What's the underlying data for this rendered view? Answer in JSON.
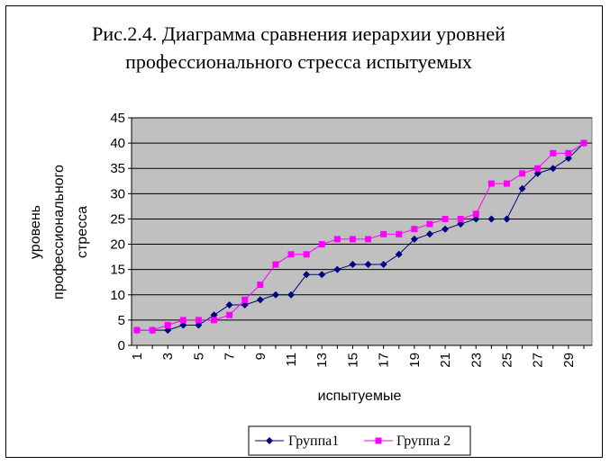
{
  "chart_data": {
    "type": "line",
    "title_lines": [
      "Рис.2.4. Диаграмма сравнения  иерархии уровней",
      "профессионального стресса испытуемых"
    ],
    "xlabel": "испытуемые",
    "ylabel_lines": [
      "уровень",
      "профессионального",
      "стресса"
    ],
    "ylim": [
      0,
      45
    ],
    "yticks": [
      "0",
      "5",
      "10",
      "15",
      "20",
      "25",
      "30",
      "35",
      "40",
      "45"
    ],
    "x": [
      1,
      2,
      3,
      4,
      5,
      6,
      7,
      8,
      9,
      10,
      11,
      12,
      13,
      14,
      15,
      16,
      17,
      18,
      19,
      20,
      21,
      22,
      23,
      24,
      25,
      26,
      27,
      28,
      29,
      30
    ],
    "xtick_labels": [
      "1",
      "3",
      "5",
      "7",
      "9",
      "11",
      "13",
      "15",
      "17",
      "19",
      "21",
      "23",
      "25",
      "27",
      "29"
    ],
    "grid": true,
    "plot_background": "#c0c0c0",
    "legend_position": "bottom",
    "series": [
      {
        "name": "Группа1",
        "color": "#000080",
        "marker": "diamond",
        "values": [
          3,
          3,
          3,
          4,
          4,
          6,
          8,
          8,
          9,
          10,
          10,
          14,
          14,
          15,
          16,
          16,
          16,
          18,
          21,
          22,
          23,
          24,
          25,
          25,
          25,
          31,
          34,
          35,
          37,
          40
        ]
      },
      {
        "name": "Группа 2",
        "color": "#ff00ff",
        "marker": "square",
        "values": [
          3,
          3,
          4,
          5,
          5,
          5,
          6,
          9,
          12,
          16,
          18,
          18,
          20,
          21,
          21,
          21,
          22,
          22,
          23,
          24,
          25,
          25,
          26,
          32,
          32,
          34,
          35,
          38,
          38,
          40
        ]
      }
    ]
  }
}
